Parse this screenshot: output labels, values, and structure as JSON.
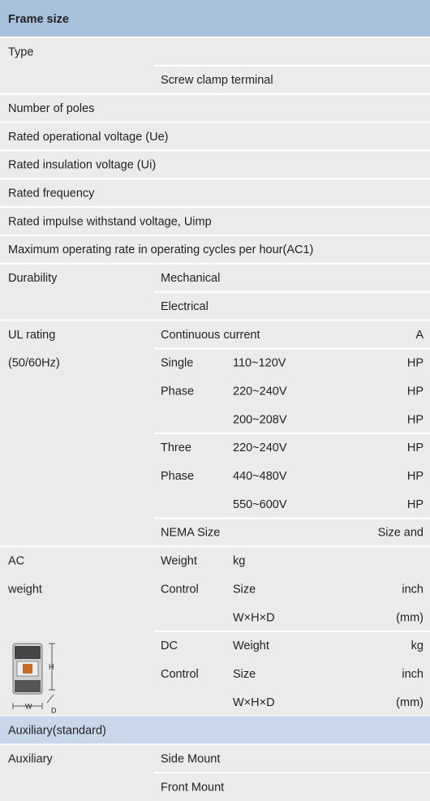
{
  "header": {
    "title": "Frame size"
  },
  "rows": [
    {
      "c1": "Type"
    },
    {
      "c2": "Screw clamp terminal"
    },
    {
      "c1": "Number of poles"
    },
    {
      "c1": "Rated operational voltage (Ue)"
    },
    {
      "c1": "Rated insulation voltage (Ui)"
    },
    {
      "c1": "Rated frequency"
    },
    {
      "c1": "Rated impulse withstand voltage, Uimp"
    },
    {
      "c1": "Maximum operating rate in operating cycles per hour(AC1)"
    },
    {
      "c1": "Durability",
      "c2": "Mechanical"
    },
    {
      "c2": "Electrical"
    },
    {
      "c1": "UL rating",
      "c2": "Continuous current",
      "c4": "A"
    },
    {
      "c1": "(50/60Hz)",
      "c2": "Single",
      "c3": "110~120V",
      "c4": "HP"
    },
    {
      "c2": "Phase",
      "c3": "220~240V",
      "c4": "HP"
    },
    {
      "c3": "200~208V",
      "c4": "HP"
    },
    {
      "c2": "Three",
      "c3": "220~240V",
      "c4": "HP"
    },
    {
      "c2": "Phase",
      "c3": "440~480V",
      "c4": "HP"
    },
    {
      "c3": "550~600V",
      "c4": "HP"
    },
    {
      "c2": "NEMA Size",
      "c4": "Size and"
    },
    {
      "c1": "AC",
      "c2": "Weight",
      "c3": "kg"
    },
    {
      "c1": "weight",
      "c2": "Control",
      "c3": "Size",
      "c4": "inch"
    },
    {
      "c3": "W×H×D",
      "c4": "(mm)"
    },
    {
      "c2": "DC",
      "c3": "Weight",
      "c4": "kg"
    },
    {
      "c2": "Control",
      "c3": "Size",
      "c4": "inch"
    },
    {
      "c3": "W×H×D",
      "c4": "(mm)"
    },
    {
      "c1": "Auxiliary(standard)"
    },
    {
      "c1": "Auxiliary",
      "c2": "Side Mount"
    },
    {
      "c2": "Front Mount"
    }
  ],
  "figure": {
    "labels": [
      "H",
      "W",
      "D"
    ]
  }
}
